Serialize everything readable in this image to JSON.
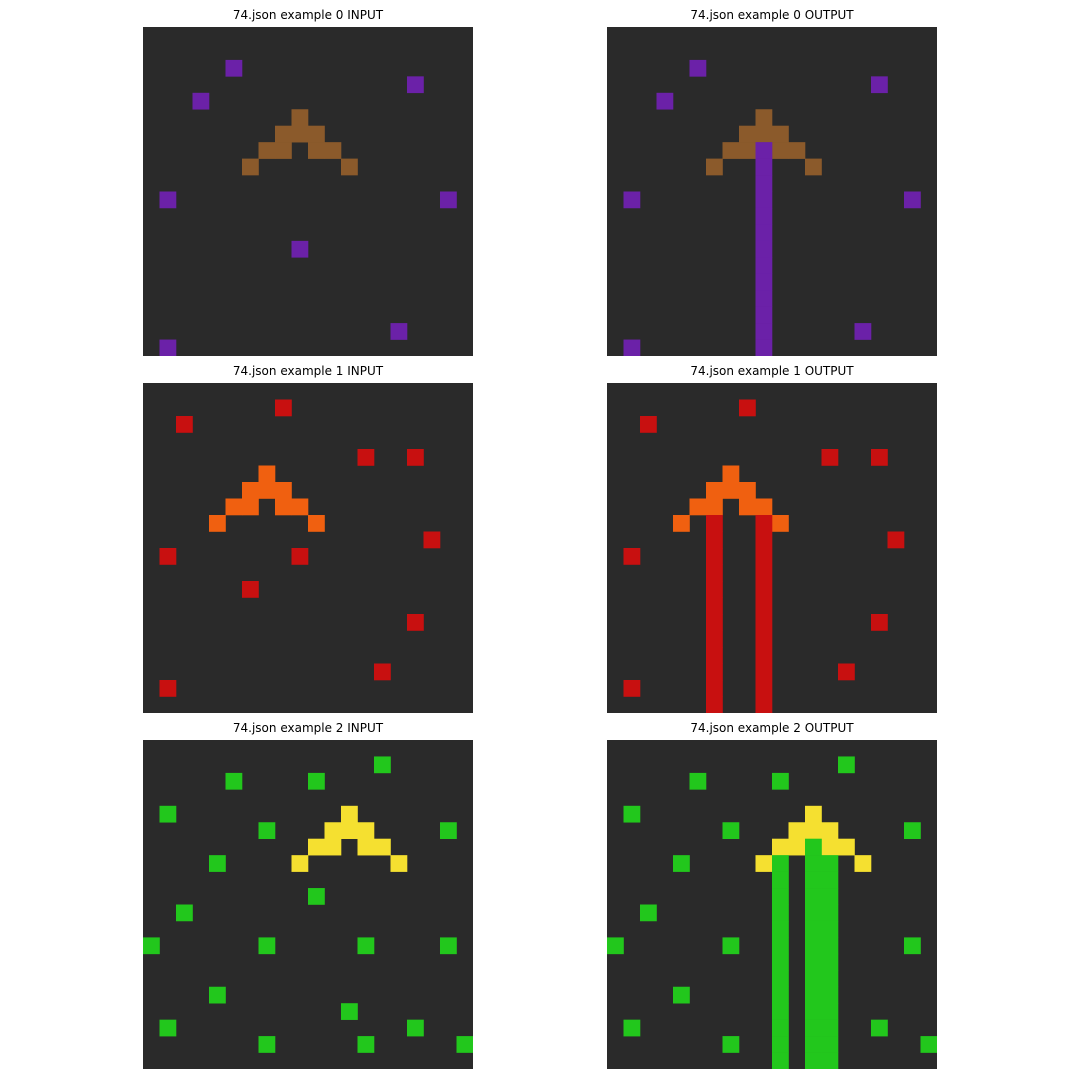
{
  "colors": {
    "background": "#2a2a2a",
    "purple": "#6b21a8",
    "brown": "#8b5a2b",
    "red": "#c81010",
    "orange": "#f06010",
    "green": "#22c71c",
    "yellow": "#f5e030"
  },
  "grid_size": 20,
  "panels": [
    {
      "title": "74.json example 0 INPUT",
      "cells": [
        [
          "purple",
          5,
          2
        ],
        [
          "purple",
          16,
          3
        ],
        [
          "purple",
          3,
          4
        ],
        [
          "brown",
          9,
          5
        ],
        [
          "brown",
          8,
          6
        ],
        [
          "brown",
          9,
          6
        ],
        [
          "brown",
          10,
          6
        ],
        [
          "brown",
          7,
          7
        ],
        [
          "brown",
          8,
          7
        ],
        [
          "brown",
          10,
          7
        ],
        [
          "brown",
          11,
          7
        ],
        [
          "brown",
          6,
          8
        ],
        [
          "brown",
          12,
          8
        ],
        [
          "purple",
          1,
          10
        ],
        [
          "purple",
          18,
          10
        ],
        [
          "purple",
          9,
          13
        ],
        [
          "purple",
          15,
          18
        ],
        [
          "purple",
          1,
          19
        ]
      ]
    },
    {
      "title": "74.json example 0 OUTPUT",
      "cells": [
        [
          "purple",
          5,
          2
        ],
        [
          "purple",
          16,
          3
        ],
        [
          "purple",
          3,
          4
        ],
        [
          "brown",
          9,
          5
        ],
        [
          "brown",
          8,
          6
        ],
        [
          "brown",
          9,
          6
        ],
        [
          "brown",
          10,
          6
        ],
        [
          "brown",
          7,
          7
        ],
        [
          "brown",
          8,
          7
        ],
        [
          "brown",
          10,
          7
        ],
        [
          "brown",
          11,
          7
        ],
        [
          "brown",
          6,
          8
        ],
        [
          "brown",
          12,
          8
        ],
        [
          "purple",
          1,
          10
        ],
        [
          "purple",
          18,
          10
        ],
        [
          "purple",
          15,
          18
        ],
        [
          "purple",
          1,
          19
        ],
        [
          "purple",
          9,
          7
        ],
        [
          "purple",
          9,
          8
        ],
        [
          "purple",
          9,
          9
        ],
        [
          "purple",
          9,
          10
        ],
        [
          "purple",
          9,
          11
        ],
        [
          "purple",
          9,
          12
        ],
        [
          "purple",
          9,
          13
        ],
        [
          "purple",
          9,
          14
        ],
        [
          "purple",
          9,
          15
        ],
        [
          "purple",
          9,
          16
        ],
        [
          "purple",
          9,
          17
        ],
        [
          "purple",
          9,
          18
        ],
        [
          "purple",
          9,
          19
        ]
      ]
    },
    {
      "title": "74.json example 1 INPUT",
      "cells": [
        [
          "red",
          8,
          1
        ],
        [
          "red",
          2,
          2
        ],
        [
          "red",
          13,
          4
        ],
        [
          "red",
          16,
          4
        ],
        [
          "orange",
          7,
          5
        ],
        [
          "orange",
          6,
          6
        ],
        [
          "orange",
          7,
          6
        ],
        [
          "orange",
          8,
          6
        ],
        [
          "orange",
          5,
          7
        ],
        [
          "orange",
          6,
          7
        ],
        [
          "orange",
          8,
          7
        ],
        [
          "orange",
          9,
          7
        ],
        [
          "orange",
          4,
          8
        ],
        [
          "orange",
          10,
          8
        ],
        [
          "red",
          17,
          9
        ],
        [
          "red",
          1,
          10
        ],
        [
          "red",
          9,
          10
        ],
        [
          "red",
          6,
          12
        ],
        [
          "red",
          16,
          14
        ],
        [
          "red",
          14,
          17
        ],
        [
          "red",
          1,
          18
        ]
      ]
    },
    {
      "title": "74.json example 1 OUTPUT",
      "cells": [
        [
          "red",
          8,
          1
        ],
        [
          "red",
          2,
          2
        ],
        [
          "red",
          13,
          4
        ],
        [
          "red",
          16,
          4
        ],
        [
          "orange",
          7,
          5
        ],
        [
          "orange",
          6,
          6
        ],
        [
          "orange",
          7,
          6
        ],
        [
          "orange",
          8,
          6
        ],
        [
          "orange",
          5,
          7
        ],
        [
          "orange",
          6,
          7
        ],
        [
          "orange",
          8,
          7
        ],
        [
          "orange",
          9,
          7
        ],
        [
          "orange",
          4,
          8
        ],
        [
          "orange",
          10,
          8
        ],
        [
          "red",
          17,
          9
        ],
        [
          "red",
          1,
          10
        ],
        [
          "red",
          16,
          14
        ],
        [
          "red",
          14,
          17
        ],
        [
          "red",
          1,
          18
        ],
        [
          "red",
          6,
          8
        ],
        [
          "red",
          6,
          9
        ],
        [
          "red",
          6,
          10
        ],
        [
          "red",
          6,
          11
        ],
        [
          "red",
          6,
          12
        ],
        [
          "red",
          6,
          13
        ],
        [
          "red",
          6,
          14
        ],
        [
          "red",
          6,
          15
        ],
        [
          "red",
          6,
          16
        ],
        [
          "red",
          6,
          17
        ],
        [
          "red",
          6,
          18
        ],
        [
          "red",
          6,
          19
        ],
        [
          "red",
          9,
          8
        ],
        [
          "red",
          9,
          9
        ],
        [
          "red",
          9,
          10
        ],
        [
          "red",
          9,
          11
        ],
        [
          "red",
          9,
          12
        ],
        [
          "red",
          9,
          13
        ],
        [
          "red",
          9,
          14
        ],
        [
          "red",
          9,
          15
        ],
        [
          "red",
          9,
          16
        ],
        [
          "red",
          9,
          17
        ],
        [
          "red",
          9,
          18
        ],
        [
          "red",
          9,
          19
        ]
      ]
    },
    {
      "title": "74.json example 2 INPUT",
      "cells": [
        [
          "green",
          14,
          1
        ],
        [
          "green",
          5,
          2
        ],
        [
          "green",
          10,
          2
        ],
        [
          "green",
          1,
          4
        ],
        [
          "yellow",
          12,
          4
        ],
        [
          "yellow",
          11,
          5
        ],
        [
          "yellow",
          12,
          5
        ],
        [
          "yellow",
          13,
          5
        ],
        [
          "yellow",
          10,
          6
        ],
        [
          "yellow",
          11,
          6
        ],
        [
          "yellow",
          13,
          6
        ],
        [
          "yellow",
          14,
          6
        ],
        [
          "yellow",
          9,
          7
        ],
        [
          "yellow",
          15,
          7
        ],
        [
          "green",
          7,
          5
        ],
        [
          "green",
          18,
          5
        ],
        [
          "green",
          4,
          7
        ],
        [
          "green",
          10,
          9
        ],
        [
          "green",
          2,
          10
        ],
        [
          "green",
          0,
          12
        ],
        [
          "green",
          7,
          12
        ],
        [
          "green",
          13,
          12
        ],
        [
          "green",
          18,
          12
        ],
        [
          "green",
          4,
          15
        ],
        [
          "green",
          12,
          16
        ],
        [
          "green",
          1,
          17
        ],
        [
          "green",
          16,
          17
        ],
        [
          "green",
          7,
          18
        ],
        [
          "green",
          13,
          18
        ],
        [
          "green",
          19,
          18
        ]
      ]
    },
    {
      "title": "74.json example 2 OUTPUT",
      "cells": [
        [
          "green",
          14,
          1
        ],
        [
          "green",
          5,
          2
        ],
        [
          "green",
          10,
          2
        ],
        [
          "green",
          1,
          4
        ],
        [
          "yellow",
          12,
          4
        ],
        [
          "yellow",
          11,
          5
        ],
        [
          "yellow",
          12,
          5
        ],
        [
          "yellow",
          13,
          5
        ],
        [
          "yellow",
          10,
          6
        ],
        [
          "yellow",
          11,
          6
        ],
        [
          "yellow",
          13,
          6
        ],
        [
          "yellow",
          14,
          6
        ],
        [
          "yellow",
          9,
          7
        ],
        [
          "yellow",
          15,
          7
        ],
        [
          "green",
          7,
          5
        ],
        [
          "green",
          18,
          5
        ],
        [
          "green",
          4,
          7
        ],
        [
          "green",
          2,
          10
        ],
        [
          "green",
          0,
          12
        ],
        [
          "green",
          7,
          12
        ],
        [
          "green",
          18,
          12
        ],
        [
          "green",
          4,
          15
        ],
        [
          "green",
          1,
          17
        ],
        [
          "green",
          16,
          17
        ],
        [
          "green",
          7,
          18
        ],
        [
          "green",
          19,
          18
        ],
        [
          "green",
          10,
          7
        ],
        [
          "green",
          10,
          8
        ],
        [
          "green",
          10,
          9
        ],
        [
          "green",
          10,
          10
        ],
        [
          "green",
          10,
          11
        ],
        [
          "green",
          10,
          12
        ],
        [
          "green",
          10,
          13
        ],
        [
          "green",
          10,
          14
        ],
        [
          "green",
          10,
          15
        ],
        [
          "green",
          10,
          16
        ],
        [
          "green",
          10,
          17
        ],
        [
          "green",
          10,
          18
        ],
        [
          "green",
          10,
          19
        ],
        [
          "green",
          12,
          6
        ],
        [
          "green",
          12,
          7
        ],
        [
          "green",
          12,
          8
        ],
        [
          "green",
          12,
          9
        ],
        [
          "green",
          12,
          10
        ],
        [
          "green",
          12,
          11
        ],
        [
          "green",
          12,
          12
        ],
        [
          "green",
          12,
          13
        ],
        [
          "green",
          12,
          14
        ],
        [
          "green",
          12,
          15
        ],
        [
          "green",
          12,
          16
        ],
        [
          "green",
          12,
          17
        ],
        [
          "green",
          12,
          18
        ],
        [
          "green",
          12,
          19
        ],
        [
          "green",
          13,
          7
        ],
        [
          "green",
          13,
          8
        ],
        [
          "green",
          13,
          9
        ],
        [
          "green",
          13,
          10
        ],
        [
          "green",
          13,
          11
        ],
        [
          "green",
          13,
          12
        ],
        [
          "green",
          13,
          13
        ],
        [
          "green",
          13,
          14
        ],
        [
          "green",
          13,
          15
        ],
        [
          "green",
          13,
          16
        ],
        [
          "green",
          13,
          17
        ],
        [
          "green",
          13,
          18
        ],
        [
          "green",
          13,
          19
        ]
      ]
    }
  ]
}
